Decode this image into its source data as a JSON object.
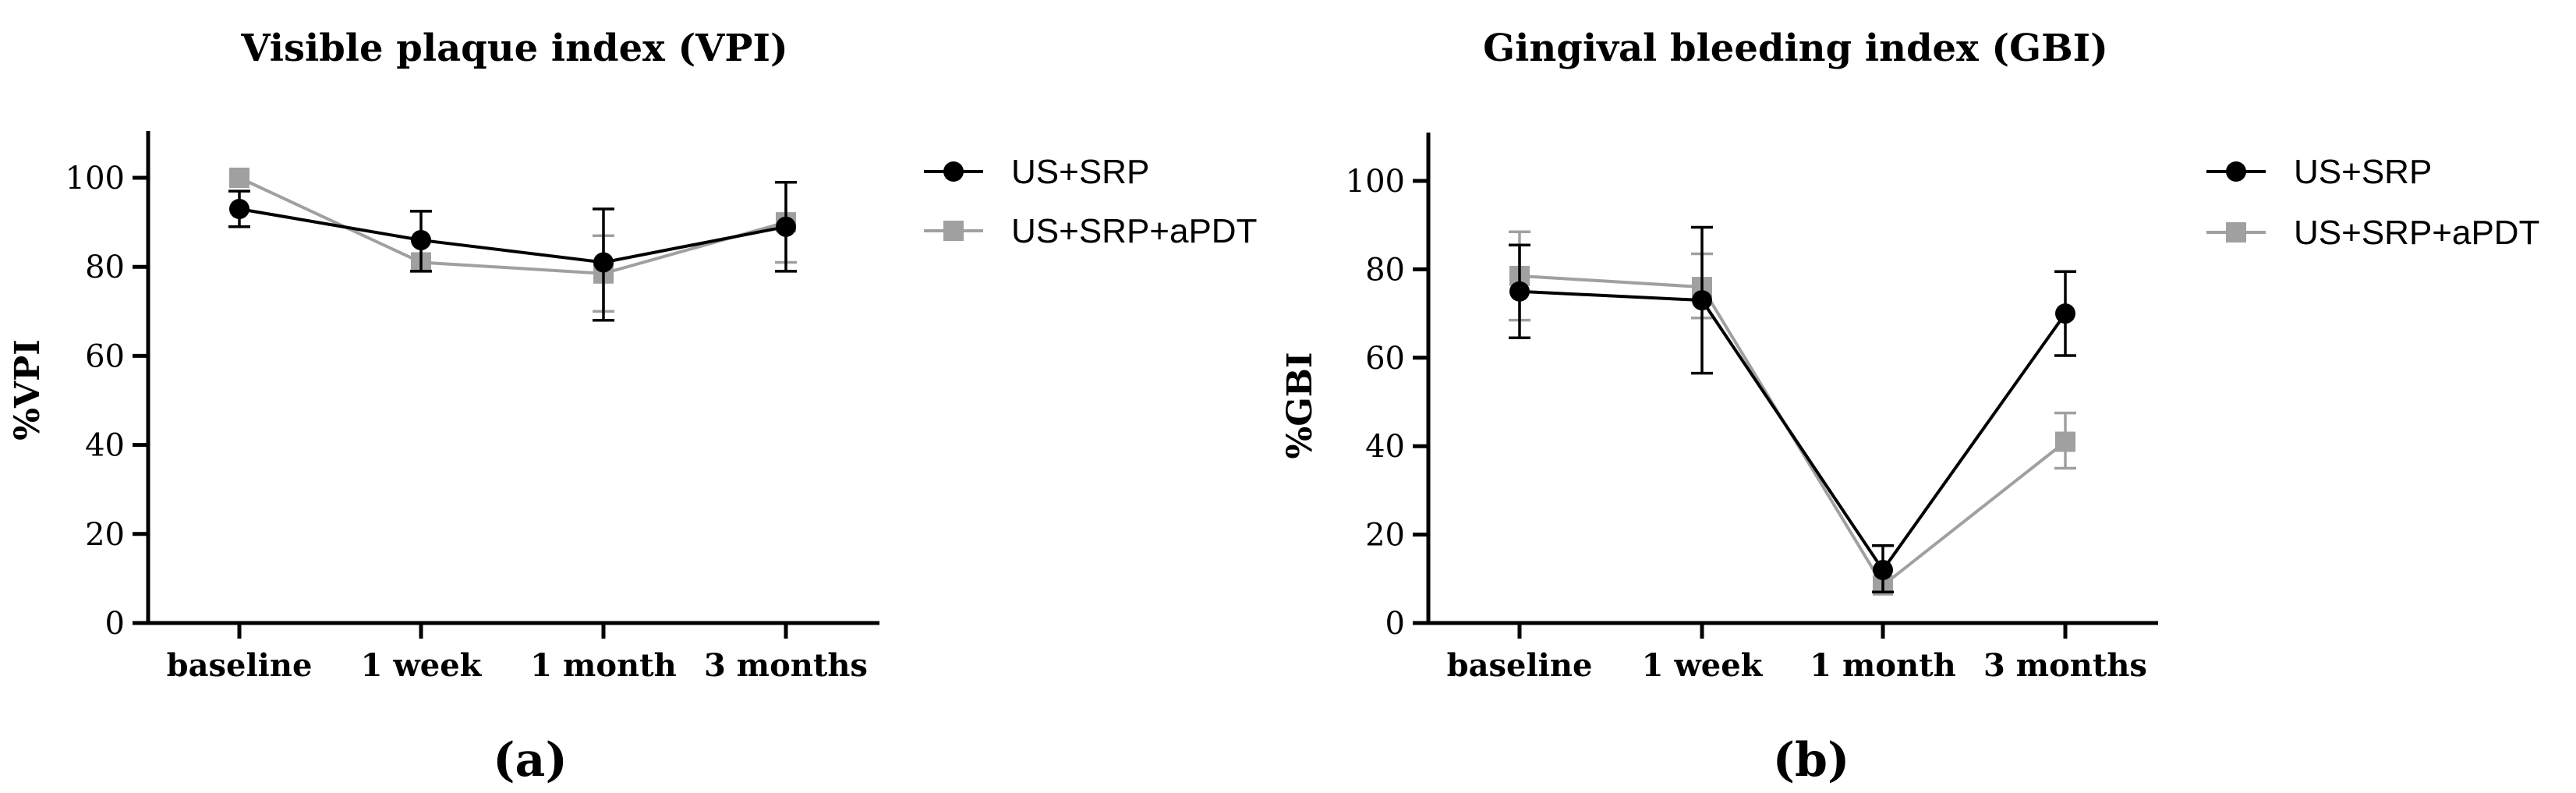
{
  "chart_data": [
    {
      "type": "line",
      "title": "Visible plaque index (VPI)",
      "ylabel": "%VPI",
      "xlabel": "",
      "panel_label": "(a)",
      "categories": [
        "baseline",
        "1 week",
        "1 month",
        "3 months"
      ],
      "ylim": [
        0,
        110
      ],
      "yticks": [
        0,
        20,
        40,
        60,
        80,
        100
      ],
      "grid": false,
      "legend_position": "right",
      "series": [
        {
          "name": "US+SRP",
          "marker": "circle",
          "color": "#000000",
          "values": [
            93,
            86,
            81,
            89
          ],
          "error_low": [
            89,
            79,
            68,
            79
          ],
          "error_high": [
            97,
            92.5,
            93,
            99
          ]
        },
        {
          "name": "US+SRP+aPDT",
          "marker": "square",
          "color": "#a0a0a0",
          "values": [
            100,
            81,
            78.5,
            90
          ],
          "error_low": [
            100,
            81,
            70,
            81
          ],
          "error_high": [
            100,
            81,
            87,
            99
          ]
        }
      ]
    },
    {
      "type": "line",
      "title": "Gingival bleeding index (GBI)",
      "ylabel": "%GBI",
      "xlabel": "",
      "panel_label": "(b)",
      "categories": [
        "baseline",
        "1 week",
        "1 month",
        "3 months"
      ],
      "ylim": [
        0,
        110
      ],
      "yticks": [
        0,
        20,
        40,
        60,
        80,
        100
      ],
      "grid": false,
      "legend_position": "right",
      "series": [
        {
          "name": "US+SRP",
          "marker": "circle",
          "color": "#000000",
          "values": [
            75,
            73,
            12,
            70
          ],
          "error_low": [
            64.5,
            56.5,
            7,
            60.5
          ],
          "error_high": [
            85.5,
            89.5,
            17.5,
            79.5
          ]
        },
        {
          "name": "US+SRP+aPDT",
          "marker": "square",
          "color": "#a0a0a0",
          "values": [
            78.5,
            76,
            8.5,
            41
          ],
          "error_low": [
            68.5,
            69,
            8.5,
            35
          ],
          "error_high": [
            88.5,
            83.5,
            8.5,
            47.5
          ]
        }
      ]
    }
  ]
}
